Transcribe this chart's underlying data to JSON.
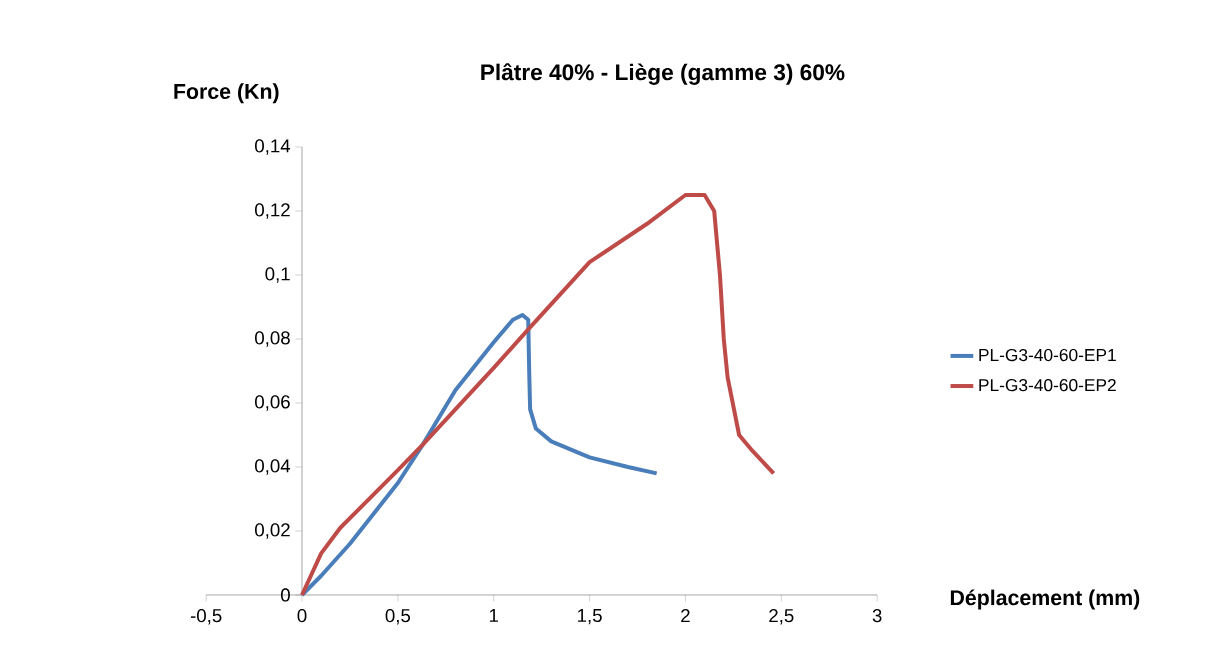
{
  "chart_data": {
    "type": "line",
    "title": "Plâtre 40% - Liège (gamme 3) 60%",
    "xlabel": "Déplacement (mm)",
    "ylabel": "Force (Kn)",
    "xlim": [
      -0.5,
      3
    ],
    "ylim": [
      0,
      0.14
    ],
    "xticks": [
      {
        "value": -0.5,
        "label": "-0,5"
      },
      0,
      {
        "value": 0.5,
        "label": "0,5"
      },
      1,
      {
        "value": 1.5,
        "label": "1,5"
      },
      2,
      {
        "value": 2.5,
        "label": "2,5"
      },
      3
    ],
    "yticks": [
      0,
      {
        "value": 0.02,
        "label": "0,02"
      },
      {
        "value": 0.04,
        "label": "0,04"
      },
      {
        "value": 0.06,
        "label": "0,06"
      },
      {
        "value": 0.08,
        "label": "0,08"
      },
      {
        "value": 0.1,
        "label": "0,1"
      },
      {
        "value": 0.12,
        "label": "0,12"
      },
      {
        "value": 0.14,
        "label": "0,14"
      }
    ],
    "legend": "right",
    "marker": "none",
    "line_style": "solid",
    "series": [
      {
        "name": "PL-G3-40-60-EP1",
        "color": "#4a7ebb",
        "x": [
          0,
          0.1,
          0.25,
          0.5,
          0.63,
          0.8,
          1.0,
          1.1,
          1.15,
          1.18,
          1.185,
          1.19,
          1.22,
          1.3,
          1.5,
          1.7,
          1.85
        ],
        "values": [
          0,
          0.006,
          0.016,
          0.035,
          0.047,
          0.064,
          0.079,
          0.086,
          0.0875,
          0.086,
          0.07,
          0.058,
          0.052,
          0.048,
          0.043,
          0.04,
          0.038
        ]
      },
      {
        "name": "PL-G3-40-60-EP2",
        "color": "#be4b48",
        "x": [
          0,
          0.1,
          0.2,
          0.5,
          0.63,
          1.0,
          1.18,
          1.5,
          1.8,
          2.0,
          2.1,
          2.15,
          2.18,
          2.2,
          2.22,
          2.28,
          2.35,
          2.46
        ],
        "values": [
          0,
          0.013,
          0.021,
          0.039,
          0.047,
          0.071,
          0.083,
          0.104,
          0.116,
          0.125,
          0.125,
          0.12,
          0.1,
          0.08,
          0.068,
          0.05,
          0.045,
          0.038
        ]
      }
    ]
  }
}
